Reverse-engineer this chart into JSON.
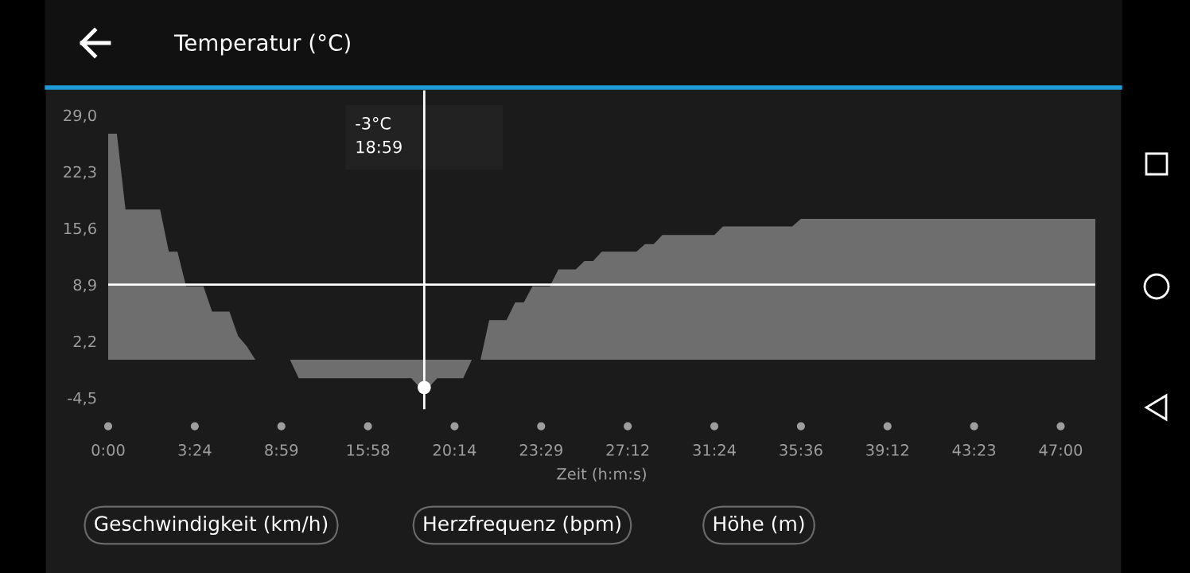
{
  "chart_data": {
    "type": "area",
    "title": "Temperatur (°C)",
    "xlabel": "Zeit (h:m:s)",
    "categories": [
      "0:00",
      null,
      null,
      null,
      null,
      null,
      null,
      null,
      null,
      null,
      "3:24",
      null,
      null,
      null,
      null,
      null,
      null,
      null,
      null,
      null,
      "8:59",
      null,
      null,
      null,
      null,
      null,
      null,
      null,
      null,
      null,
      "15:58",
      null,
      null,
      null,
      null,
      null,
      null,
      null,
      null,
      null,
      "20:14",
      null,
      null,
      null,
      null,
      null,
      null,
      null,
      null,
      null,
      "23:29",
      null,
      null,
      null,
      null,
      null,
      null,
      null,
      null,
      null,
      "27:12",
      null,
      null,
      null,
      null,
      null,
      null,
      null,
      null,
      null,
      "31:24",
      null,
      null,
      null,
      null,
      null,
      null,
      null,
      null,
      null,
      "35:36",
      null,
      null,
      null,
      null,
      null,
      null,
      null,
      null,
      null,
      "39:12",
      null,
      null,
      null,
      null,
      null,
      null,
      null,
      null,
      null,
      "43:23",
      null,
      null,
      null,
      null,
      null,
      null,
      null,
      null,
      null,
      "47:00",
      null,
      null,
      null,
      null
    ],
    "series": [
      {
        "color": "#6e6e6e",
        "values": [
          26.8,
          26.8,
          17.8,
          17.8,
          17.8,
          17.8,
          17.8,
          12.8,
          12.8,
          8.7,
          8.7,
          8.7,
          5.7,
          5.7,
          5.7,
          2.8,
          1.6,
          0,
          0,
          0,
          0,
          0,
          -2.2,
          -2.2,
          -2.2,
          -2.2,
          -2.2,
          -2.2,
          -2.2,
          -2.2,
          -2.2,
          -2.2,
          -2.2,
          -2.2,
          -2.2,
          -2.2,
          -3.3,
          -3.3,
          -2.2,
          -2.2,
          -2.2,
          -2.2,
          0,
          0,
          4.7,
          4.7,
          4.7,
          6.8,
          6.8,
          8.7,
          8.7,
          8.7,
          10.7,
          10.7,
          10.7,
          11.7,
          11.7,
          12.8,
          12.8,
          12.8,
          12.8,
          12.8,
          13.7,
          13.7,
          14.8,
          14.8,
          14.8,
          14.8,
          14.8,
          14.8,
          14.8,
          15.8,
          15.8,
          15.8,
          15.8,
          15.8,
          15.8,
          15.8,
          15.8,
          15.8,
          16.7,
          16.7,
          16.7,
          16.7,
          16.7,
          16.7,
          16.7,
          16.7,
          16.7,
          16.7,
          16.7,
          16.7,
          16.7,
          16.7,
          16.7,
          16.7,
          16.7,
          16.7,
          16.7,
          16.7,
          16.7,
          16.7,
          16.7,
          16.7,
          16.7,
          16.7,
          16.7,
          16.7,
          16.7,
          16.7,
          16.7,
          16.7,
          16.7,
          16.7,
          16.7
        ]
      }
    ],
    "ylim": [
      -5,
      31.8
    ],
    "yticks": [
      {
        "value": 29.0,
        "label": "29,0"
      },
      {
        "value": 22.3,
        "label": "22,3"
      },
      {
        "value": 15.6,
        "label": "15,6"
      },
      {
        "value": 8.9,
        "label": "8,9"
      },
      {
        "value": 2.2,
        "label": "2,2"
      },
      {
        "value": -4.5,
        "label": "-4,5"
      }
    ],
    "ref_lines": [
      {
        "axis": "y",
        "value": 8.9,
        "color": "#ffffff"
      }
    ],
    "annotations": [
      "-3°C\n18:59",
      "Geschwindigkeit (km/h)",
      "Herzfrequenz (bpm)",
      "Höhe (m)"
    ],
    "grid": false,
    "legend": false
  }
}
